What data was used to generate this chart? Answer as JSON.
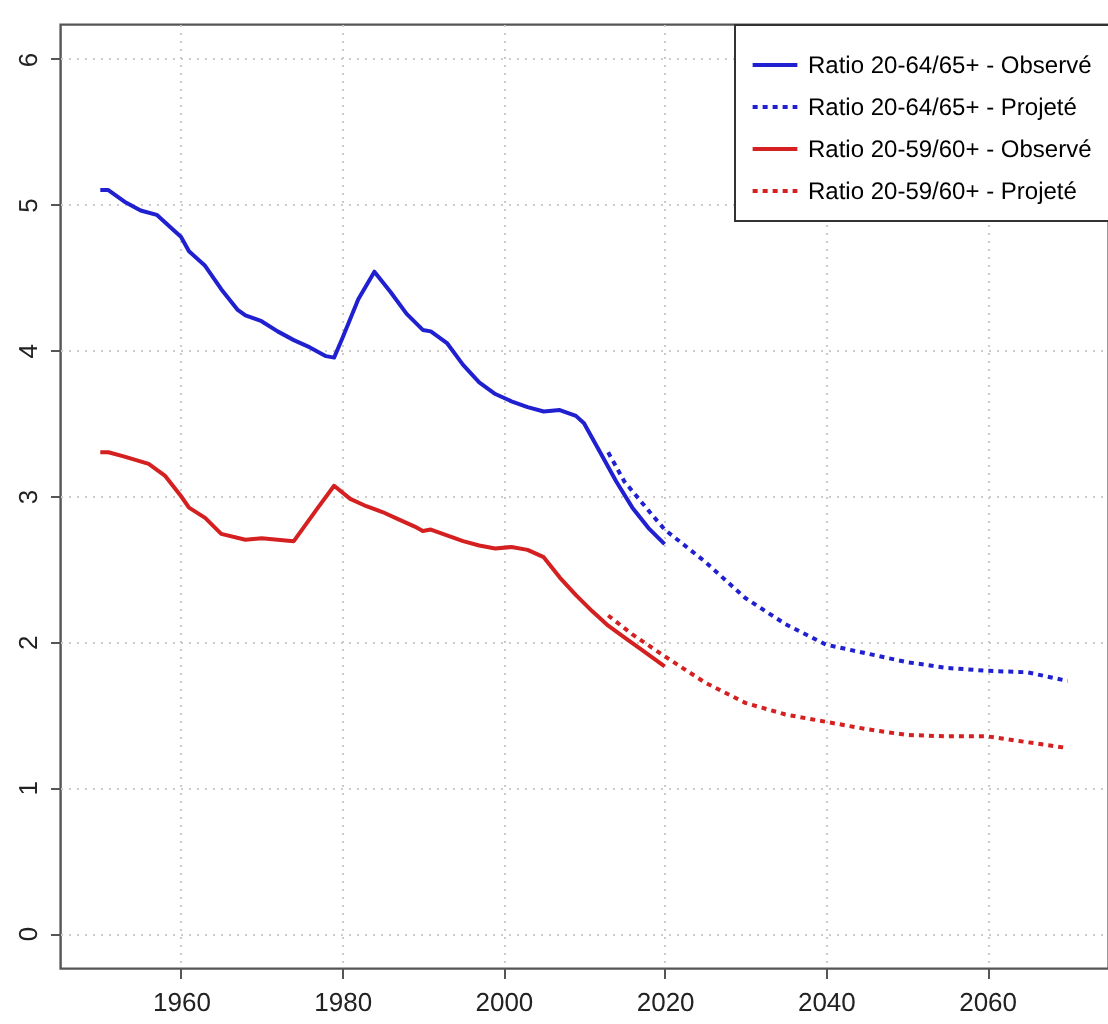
{
  "chart_data": {
    "type": "line",
    "xlim": [
      1945,
      2075
    ],
    "ylim": [
      -0.24,
      6.24
    ],
    "xticks": [
      1960,
      1980,
      2000,
      2020,
      2040,
      2060
    ],
    "yticks": [
      0,
      1,
      2,
      3,
      4,
      5,
      6
    ],
    "grid": true,
    "legend": "top right",
    "series": [
      {
        "name": "Ratio 20-64/65+ - Observé",
        "color": "#2020d0",
        "line_style": "solid",
        "x": [
          1950,
          1951,
          1953,
          1955,
          1957,
          1959,
          1960,
          1961,
          1963,
          1965,
          1967,
          1968,
          1970,
          1972,
          1974,
          1976,
          1978,
          1979,
          1980,
          1982,
          1984,
          1986,
          1988,
          1990,
          1991,
          1993,
          1995,
          1997,
          1999,
          2001,
          2003,
          2005,
          2007,
          2009,
          2010,
          2012,
          2014,
          2016,
          2018,
          2020
        ],
        "values": [
          5.1,
          5.1,
          5.02,
          4.96,
          4.93,
          4.83,
          4.78,
          4.68,
          4.58,
          4.42,
          4.28,
          4.24,
          4.2,
          4.13,
          4.07,
          4.02,
          3.96,
          3.95,
          4.08,
          4.35,
          4.54,
          4.4,
          4.25,
          4.14,
          4.13,
          4.05,
          3.9,
          3.78,
          3.7,
          3.65,
          3.61,
          3.58,
          3.59,
          3.55,
          3.5,
          3.3,
          3.1,
          2.92,
          2.78,
          2.67
        ]
      },
      {
        "name": "Ratio 20-64/65+ - Projeté",
        "color": "#2020d0",
        "line_style": "dotted",
        "x": [
          2013,
          2015,
          2018,
          2020,
          2025,
          2030,
          2035,
          2040,
          2045,
          2050,
          2055,
          2060,
          2065,
          2070
        ],
        "values": [
          3.3,
          3.1,
          2.9,
          2.77,
          2.55,
          2.3,
          2.12,
          1.98,
          1.92,
          1.86,
          1.82,
          1.8,
          1.79,
          1.73
        ]
      },
      {
        "name": "Ratio 20-59/60+ - Observé",
        "color": "#d42020",
        "line_style": "solid",
        "x": [
          1950,
          1951,
          1953,
          1956,
          1958,
          1960,
          1961,
          1963,
          1965,
          1968,
          1970,
          1972,
          1974,
          1977,
          1979,
          1981,
          1983,
          1985,
          1987,
          1989,
          1990,
          1991,
          1993,
          1995,
          1997,
          1999,
          2001,
          2003,
          2005,
          2007,
          2009,
          2011,
          2013,
          2015,
          2017,
          2020
        ],
        "values": [
          3.3,
          3.3,
          3.27,
          3.22,
          3.14,
          3.0,
          2.92,
          2.85,
          2.74,
          2.7,
          2.71,
          2.7,
          2.69,
          2.92,
          3.07,
          2.98,
          2.93,
          2.89,
          2.84,
          2.79,
          2.76,
          2.77,
          2.73,
          2.69,
          2.66,
          2.64,
          2.65,
          2.63,
          2.58,
          2.44,
          2.32,
          2.21,
          2.11,
          2.03,
          1.95,
          1.83
        ]
      },
      {
        "name": "Ratio 20-59/60+ - Projeté",
        "color": "#d42020",
        "line_style": "dotted",
        "x": [
          2013,
          2016,
          2020,
          2025,
          2030,
          2035,
          2040,
          2045,
          2050,
          2055,
          2060,
          2065,
          2070
        ],
        "values": [
          2.18,
          2.05,
          1.9,
          1.72,
          1.58,
          1.5,
          1.45,
          1.4,
          1.36,
          1.35,
          1.35,
          1.31,
          1.27
        ]
      }
    ]
  }
}
